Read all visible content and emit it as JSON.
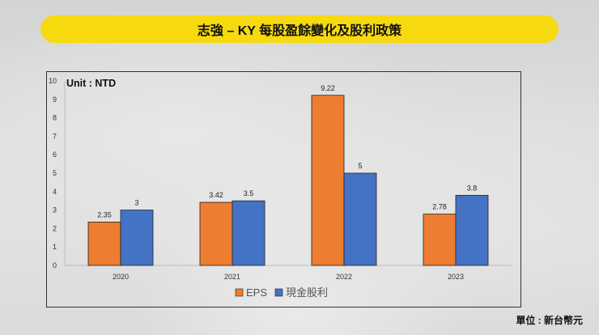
{
  "title": "志強 – KY 每股盈餘變化及股利政策",
  "unit_note": "單位 : 新台幣元",
  "chart_data": {
    "type": "bar",
    "title": "",
    "ylabel": "Unit : NTD",
    "xlabel": "",
    "categories": [
      "2020",
      "2021",
      "2022",
      "2023"
    ],
    "series": [
      {
        "name": "EPS",
        "values": [
          2.35,
          3.42,
          9.22,
          2.78
        ],
        "color": "#ed7d31"
      },
      {
        "name": "現金股利",
        "values": [
          3,
          3.5,
          5,
          3.8
        ],
        "color": "#4472c4"
      }
    ],
    "ylim": [
      0,
      10
    ],
    "yticks": [
      "0",
      "1",
      "2",
      "3",
      "4",
      "5",
      "6",
      "7",
      "8",
      "9",
      "10"
    ],
    "grid": false,
    "legend": "bottom-center"
  }
}
